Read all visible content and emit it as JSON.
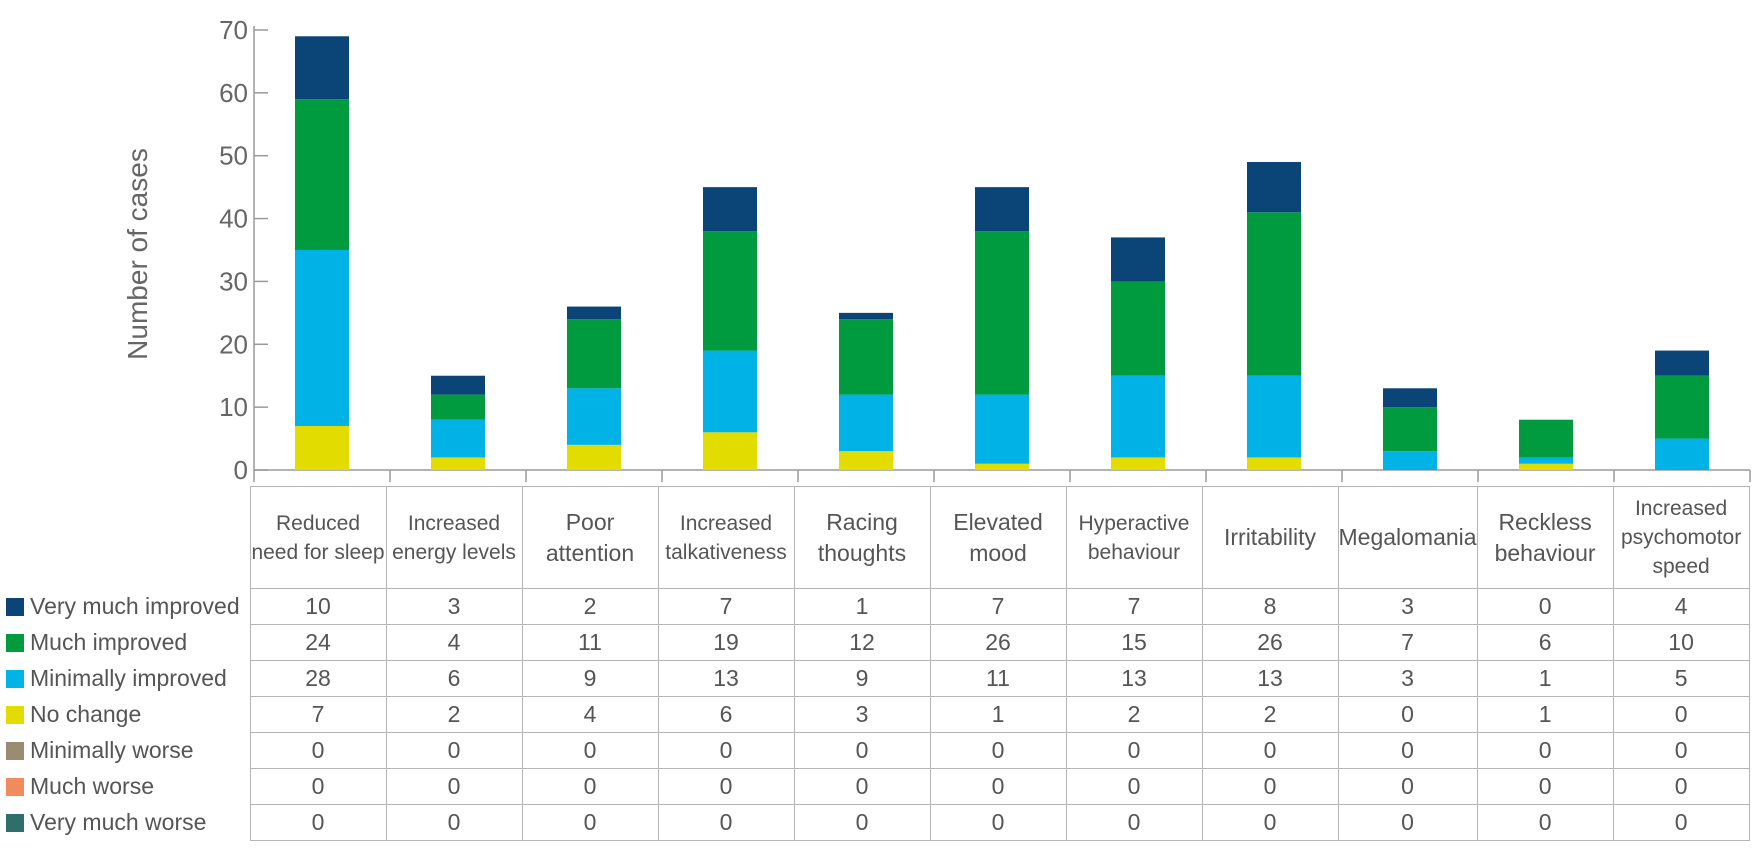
{
  "chart_data": {
    "type": "bar",
    "stacked": true,
    "ylabel": "Number of cases",
    "ylim": [
      0,
      70
    ],
    "yticks": [
      0,
      10,
      20,
      30,
      40,
      50,
      60,
      70
    ],
    "categories": [
      "Reduced need for sleep",
      "Increased energy levels",
      "Poor attention",
      "Increased talkativeness",
      "Racing thoughts",
      "Elevated mood",
      "Hyperactive behaviour",
      "Irritability",
      "Megalomania",
      "Reckless behaviour",
      "Increased psychomotor speed"
    ],
    "series": [
      {
        "name": "Very much improved",
        "color": "#0b4477",
        "values": [
          10,
          3,
          2,
          7,
          1,
          7,
          7,
          8,
          3,
          0,
          4
        ]
      },
      {
        "name": "Much improved",
        "color": "#009b3e",
        "values": [
          24,
          4,
          11,
          19,
          12,
          26,
          15,
          26,
          7,
          6,
          10
        ]
      },
      {
        "name": "Minimally improved",
        "color": "#00b2e5",
        "values": [
          28,
          6,
          9,
          13,
          9,
          11,
          13,
          13,
          3,
          1,
          5
        ]
      },
      {
        "name": "No change",
        "color": "#e2dc00",
        "values": [
          7,
          2,
          4,
          6,
          3,
          1,
          2,
          2,
          0,
          1,
          0
        ]
      },
      {
        "name": "Minimally worse",
        "color": "#9a8b73",
        "values": [
          0,
          0,
          0,
          0,
          0,
          0,
          0,
          0,
          0,
          0,
          0
        ]
      },
      {
        "name": "Much worse",
        "color": "#ef8b5d",
        "values": [
          0,
          0,
          0,
          0,
          0,
          0,
          0,
          0,
          0,
          0,
          0
        ]
      },
      {
        "name": "Very much worse",
        "color": "#2f6e6a",
        "values": [
          0,
          0,
          0,
          0,
          0,
          0,
          0,
          0,
          0,
          0,
          0
        ]
      }
    ],
    "grid": false,
    "legend": "table-left"
  }
}
